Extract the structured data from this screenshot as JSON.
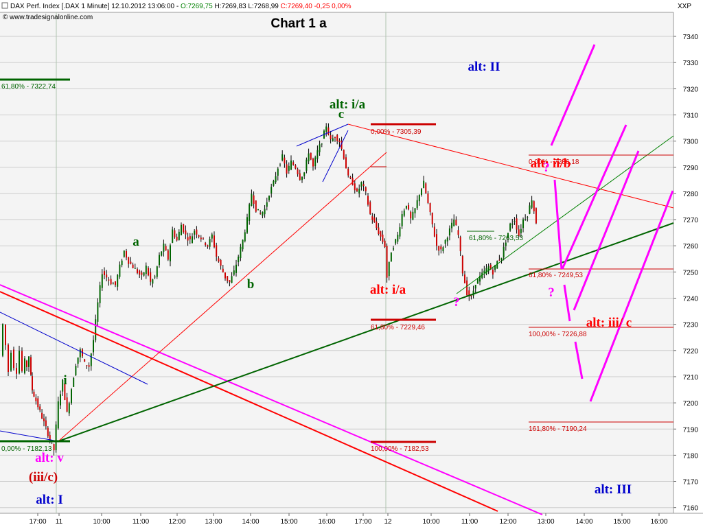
{
  "header": {
    "instrument": "DAX Perf. Index [.DAX  1 Minute] 12.10.2012 13:06:00 -",
    "open": "O:7269,75",
    "high": "H:7269,83",
    "low": "L:7268,99",
    "close": "C:7269,40 -0,25 0,00%",
    "source": "www.tradesignalonline.com",
    "axis_unit": "XXP",
    "colors": {
      "instrument": "#000000",
      "open": "#008000",
      "high": "#000000",
      "low": "#000000",
      "close": "#ff0000"
    }
  },
  "chart_data": {
    "type": "candlestick",
    "title": "Chart 1 a",
    "ylim": [
      7152,
      7348
    ],
    "yticks": [
      7160,
      7170,
      7180,
      7190,
      7200,
      7210,
      7220,
      7230,
      7240,
      7250,
      7260,
      7270,
      7280,
      7290,
      7300,
      7310,
      7320,
      7330,
      7340
    ],
    "xticks": [
      {
        "label": "17:00",
        "t": 0.3
      },
      {
        "label": "11",
        "t": 1.0
      },
      {
        "label": "10:00",
        "t": 2.0
      },
      {
        "label": "11:00",
        "t": 3.0
      },
      {
        "label": "12:00",
        "t": 4.0
      },
      {
        "label": "13:00",
        "t": 5.0
      },
      {
        "label": "14:00",
        "t": 6.0
      },
      {
        "label": "15:00",
        "t": 7.0
      },
      {
        "label": "16:00",
        "t": 8.0
      },
      {
        "label": "17:00",
        "t": 9.0
      },
      {
        "label": "12",
        "t": 9.3
      },
      {
        "label": "10:00",
        "t": 10.3
      },
      {
        "label": "11:00",
        "t": 11.3
      },
      {
        "label": "12:00",
        "t": 12.3
      },
      {
        "label": "13:00",
        "t": 13.3
      },
      {
        "label": "14:00",
        "t": 14.3
      },
      {
        "label": "15:00",
        "t": 15.3
      },
      {
        "label": "16:00",
        "t": 16.3
      }
    ],
    "session_breaks": [
      1.0,
      9.3
    ],
    "xlim": [
      -0.6,
      17.0
    ],
    "price_path": [
      [
        -0.6,
        7218
      ],
      [
        -0.5,
        7230
      ],
      [
        -0.4,
        7222
      ],
      [
        -0.3,
        7212
      ],
      [
        -0.2,
        7220
      ],
      [
        -0.1,
        7214
      ],
      [
        0.0,
        7212
      ],
      [
        0.1,
        7220
      ],
      [
        0.2,
        7212
      ],
      [
        0.3,
        7216
      ],
      [
        0.35,
        7214
      ],
      [
        0.45,
        7218
      ],
      [
        0.5,
        7210
      ],
      [
        0.55,
        7205
      ],
      [
        1.0,
        7182
      ],
      [
        1.1,
        7200
      ],
      [
        1.2,
        7208
      ],
      [
        1.3,
        7196
      ],
      [
        1.5,
        7215
      ],
      [
        1.6,
        7220
      ],
      [
        1.7,
        7215
      ],
      [
        1.8,
        7214
      ],
      [
        1.9,
        7224
      ],
      [
        2.0,
        7238
      ],
      [
        2.1,
        7250
      ],
      [
        2.2,
        7248
      ],
      [
        2.3,
        7246
      ],
      [
        2.4,
        7245
      ],
      [
        2.5,
        7252
      ],
      [
        2.6,
        7258
      ],
      [
        2.7,
        7254
      ],
      [
        2.8,
        7252
      ],
      [
        3.0,
        7248
      ],
      [
        3.1,
        7252
      ],
      [
        3.2,
        7246
      ],
      [
        3.3,
        7248
      ],
      [
        3.4,
        7256
      ],
      [
        3.5,
        7260
      ],
      [
        3.6,
        7255
      ],
      [
        3.7,
        7266
      ],
      [
        3.8,
        7262
      ],
      [
        3.9,
        7268
      ],
      [
        4.0,
        7264
      ],
      [
        4.1,
        7262
      ],
      [
        4.2,
        7266
      ],
      [
        4.4,
        7262
      ],
      [
        4.5,
        7260
      ],
      [
        4.6,
        7264
      ],
      [
        4.7,
        7256
      ],
      [
        4.8,
        7252
      ],
      [
        4.9,
        7248
      ],
      [
        5.0,
        7246
      ],
      [
        5.1,
        7250
      ],
      [
        5.2,
        7256
      ],
      [
        5.3,
        7262
      ],
      [
        5.4,
        7270
      ],
      [
        5.5,
        7280
      ],
      [
        5.6,
        7274
      ],
      [
        5.7,
        7272
      ],
      [
        5.8,
        7274
      ],
      [
        5.9,
        7280
      ],
      [
        6.0,
        7284
      ],
      [
        6.1,
        7290
      ],
      [
        6.2,
        7294
      ],
      [
        6.3,
        7288
      ],
      [
        6.4,
        7292
      ],
      [
        6.5,
        7290
      ],
      [
        6.6,
        7286
      ],
      [
        6.7,
        7288
      ],
      [
        6.8,
        7296
      ],
      [
        6.9,
        7290
      ],
      [
        7.0,
        7296
      ],
      [
        7.1,
        7300
      ],
      [
        7.2,
        7306
      ],
      [
        7.3,
        7300
      ],
      [
        7.4,
        7302
      ],
      [
        7.5,
        7300
      ],
      [
        7.6,
        7294
      ],
      [
        7.7,
        7286
      ],
      [
        7.8,
        7284
      ],
      [
        7.9,
        7280
      ],
      [
        8.0,
        7284
      ],
      [
        8.1,
        7280
      ],
      [
        8.2,
        7272
      ],
      [
        9.3,
        7260
      ],
      [
        9.35,
        7248
      ],
      [
        9.45,
        7258
      ],
      [
        9.6,
        7264
      ],
      [
        9.7,
        7272
      ],
      [
        9.8,
        7276
      ],
      [
        9.9,
        7270
      ],
      [
        10.0,
        7274
      ],
      [
        10.1,
        7280
      ],
      [
        10.2,
        7284
      ],
      [
        10.3,
        7276
      ],
      [
        10.4,
        7268
      ],
      [
        10.5,
        7260
      ],
      [
        10.6,
        7258
      ],
      [
        10.7,
        7262
      ],
      [
        10.8,
        7266
      ],
      [
        10.9,
        7270
      ],
      [
        11.0,
        7264
      ],
      [
        11.1,
        7250
      ],
      [
        11.2,
        7242
      ],
      [
        11.3,
        7240
      ],
      [
        11.4,
        7246
      ],
      [
        11.5,
        7248
      ],
      [
        11.6,
        7250
      ],
      [
        11.7,
        7252
      ],
      [
        11.8,
        7250
      ],
      [
        11.9,
        7254
      ],
      [
        12.0,
        7256
      ],
      [
        12.1,
        7262
      ],
      [
        12.2,
        7268
      ],
      [
        12.3,
        7270
      ],
      [
        12.4,
        7264
      ],
      [
        12.5,
        7270
      ],
      [
        12.6,
        7272
      ],
      [
        12.7,
        7278
      ],
      [
        12.8,
        7269
      ]
    ]
  },
  "fib_levels": [
    {
      "text": "61,80% - 7322,74",
      "color": "#006400"
    },
    {
      "text": "0,00% - 7305,39",
      "color": "#cc0000"
    },
    {
      "text": "61,80% - 7229,46",
      "color": "#cc0000"
    },
    {
      "text": "100,00% - 7182,53",
      "color": "#cc0000"
    },
    {
      "text": "0,00% - 7182,13",
      "color": "#006400"
    },
    {
      "text": "61,80% - 7263,53",
      "color": "#006400"
    },
    {
      "text": "0,00% - 7286,18",
      "color": "#cc0000"
    },
    {
      "text": "61,80% - 7249,53",
      "color": "#cc0000"
    },
    {
      "text": "100,00% - 7226,88",
      "color": "#cc0000"
    },
    {
      "text": "161,80% - 7190,24",
      "color": "#cc0000"
    }
  ],
  "wave_labels": [
    {
      "text": "alt: I",
      "color": "#0000cc"
    },
    {
      "text": "alt: II",
      "color": "#0000cc"
    },
    {
      "text": "alt: III",
      "color": "#0000cc"
    },
    {
      "text": "alt: v",
      "color": "#ff00ff"
    },
    {
      "text": "(iii/c)",
      "color": "#cc0000"
    },
    {
      "text": "i",
      "color": "#006400"
    },
    {
      "text": "a",
      "color": "#006400"
    },
    {
      "text": "b",
      "color": "#006400"
    },
    {
      "text": "c",
      "color": "#006400"
    },
    {
      "text": "alt: i/a",
      "color": "#006400"
    },
    {
      "text": "alt: i/a",
      "color": "#ff0000"
    },
    {
      "text": "alt: ii/b",
      "color": "#ff0000"
    },
    {
      "text": "alt: iii/ c",
      "color": "#ff0000"
    },
    {
      "text": "?",
      "color": "#ff00ff"
    },
    {
      "text": "?",
      "color": "#ff00ff"
    },
    {
      "text": "?",
      "color": "#ff00ff"
    }
  ]
}
